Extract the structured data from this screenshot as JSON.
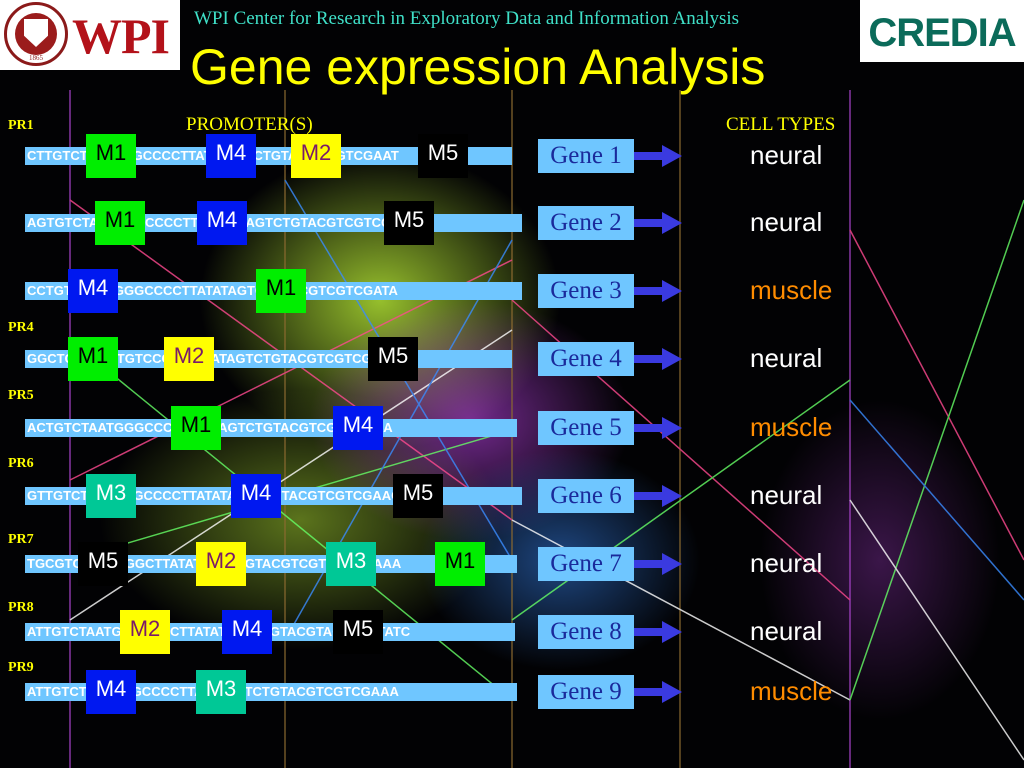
{
  "header": {
    "institution": "WPI",
    "seal_year": "1865",
    "center_name": "WPI Center for Research in Exploratory Data and Information Analysis",
    "center_logo": "CREDIA"
  },
  "title": "Gene expression Analysis",
  "columns": {
    "promoters": "PROMOTER(S)",
    "cell_types": "CELL TYPES"
  },
  "promoter_labels": [
    "PR1",
    "PR4",
    "PR5",
    "PR6",
    "PR7",
    "PR8",
    "PR9"
  ],
  "colors": {
    "M1": "#00ee00",
    "M2": "#ffff00",
    "M3": "#00c896",
    "M4": "#0018f0",
    "M5": "#000000",
    "neural": "#ffffff",
    "muscle": "#ff8c00"
  },
  "rows": [
    {
      "sequence": "CTTGTCTAATGGGCCCCTTATATAGTCTGTACGACGTCGAAT",
      "gene": "Gene 1",
      "cell_type": "neural",
      "motifs": [
        {
          "label": "M1"
        },
        {
          "label": "M4"
        },
        {
          "label": "M2"
        },
        {
          "label": "M5"
        }
      ]
    },
    {
      "sequence": "AGTGTCTAATGGGCCCCTTATATCTAGTCTGTACGTCGTCGACA",
      "gene": "Gene 2",
      "cell_type": "neural",
      "motifs": [
        {
          "label": "M1"
        },
        {
          "label": "M4"
        },
        {
          "label": "M5"
        }
      ]
    },
    {
      "sequence": "CCTGTCTAATGGGCCCCTTATATAGTCTGTACGTCGTCGATA",
      "gene": "Gene 3",
      "cell_type": "muscle",
      "motifs": [
        {
          "label": "M4"
        },
        {
          "label": "M1"
        }
      ]
    },
    {
      "sequence": "GGCTGTCTAATGTCCCCTTATATAGTCTGTACGTCGTCGAAA",
      "gene": "Gene 4",
      "cell_type": "neural",
      "motifs": [
        {
          "label": "M1"
        },
        {
          "label": "M2"
        },
        {
          "label": "M5"
        }
      ]
    },
    {
      "sequence": "ACTGTCTAATGGGCCCTTATATAGTCTGTACGTCGTCGAGA",
      "gene": "Gene 5",
      "cell_type": "muscle",
      "motifs": [
        {
          "label": "M1"
        },
        {
          "label": "M4"
        }
      ]
    },
    {
      "sequence": "GTTGTCTAATGGGCCCCTTATATAGTCTGTACGTCGTCGAAC",
      "gene": "Gene 6",
      "cell_type": "neural",
      "motifs": [
        {
          "label": "M3"
        },
        {
          "label": "M4"
        },
        {
          "label": "M5"
        }
      ]
    },
    {
      "sequence": "TGCGTCTAATGGGCTTATATAGTCTGTACGTCGTCGTCGAAA",
      "gene": "Gene 7",
      "cell_type": "neural",
      "motifs": [
        {
          "label": "M5"
        },
        {
          "label": "M2"
        },
        {
          "label": "M3"
        },
        {
          "label": "M1"
        }
      ]
    },
    {
      "sequence": "ATTGTCTAATGGGCCCCTTATATAGTCTGTACGTACTCGATATC",
      "gene": "Gene 8",
      "cell_type": "neural",
      "motifs": [
        {
          "label": "M2"
        },
        {
          "label": "M4"
        },
        {
          "label": "M5"
        }
      ]
    },
    {
      "sequence": "ATTGTCTAATGGGCCCCTTATATAGTCTGTACGTCGTCGAAA",
      "gene": "Gene 9",
      "cell_type": "muscle",
      "motifs": [
        {
          "label": "M4"
        },
        {
          "label": "M3"
        }
      ]
    }
  ]
}
